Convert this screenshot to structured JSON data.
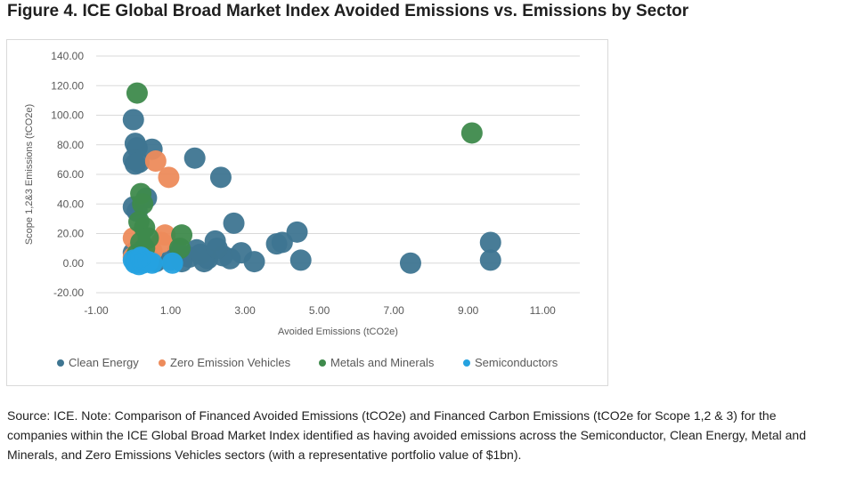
{
  "figure_title": "Figure 4. ICE Global Broad Market Index Avoided Emissions vs. Emissions by Sector",
  "source_note": "Source: ICE. Note: Comparison of Financed Avoided Emissions (tCO2e) and Financed Carbon Emissions (tCO2e for Scope 1,2 & 3) for the companies within the ICE Global Broad Market Index identified as having avoided emissions across the Semiconductor, Clean Energy, Metal and Minerals, and Zero Emissions Vehicles sectors (with a representative portfolio value of $1bn).",
  "chart_data": {
    "type": "scatter",
    "title": "",
    "xlabel": "Avoided Emissions (tCO2e)",
    "ylabel": "Scope 1,2&3 Emissions (tCO2e)",
    "xlim": [
      -1,
      12
    ],
    "ylim": [
      -20,
      140
    ],
    "x_ticks": [
      "-1.00",
      "1.00",
      "3.00",
      "5.00",
      "7.00",
      "9.00",
      "11.00"
    ],
    "y_ticks": [
      "-20.00",
      "0.00",
      "20.00",
      "40.00",
      "60.00",
      "80.00",
      "100.00",
      "120.00",
      "140.00"
    ],
    "grid": true,
    "legend_position": "bottom",
    "series": [
      {
        "name": "Clean Energy",
        "color": "#3e7591",
        "points": [
          [
            0.0,
            97
          ],
          [
            0.05,
            81
          ],
          [
            0.1,
            78
          ],
          [
            0.0,
            70
          ],
          [
            0.05,
            67
          ],
          [
            0.15,
            68
          ],
          [
            0.5,
            77
          ],
          [
            1.65,
            71
          ],
          [
            2.35,
            58
          ],
          [
            0.35,
            44
          ],
          [
            0.0,
            38
          ],
          [
            0.1,
            35
          ],
          [
            0.0,
            7
          ],
          [
            0.2,
            5
          ],
          [
            0.4,
            3
          ],
          [
            0.6,
            1
          ],
          [
            1.0,
            2
          ],
          [
            1.3,
            1
          ],
          [
            1.5,
            4
          ],
          [
            1.8,
            6
          ],
          [
            2.0,
            3
          ],
          [
            2.2,
            15
          ],
          [
            2.4,
            5
          ],
          [
            2.6,
            3
          ],
          [
            2.7,
            27
          ],
          [
            2.9,
            7
          ],
          [
            3.25,
            1
          ],
          [
            3.85,
            13
          ],
          [
            4.0,
            14
          ],
          [
            4.4,
            21
          ],
          [
            4.5,
            2
          ],
          [
            1.9,
            1
          ],
          [
            1.7,
            9
          ],
          [
            2.25,
            10
          ],
          [
            1.2,
            8
          ],
          [
            7.45,
            0
          ],
          [
            9.6,
            14
          ],
          [
            9.6,
            2
          ]
        ]
      },
      {
        "name": "Zero Emission Vehicles",
        "color": "#ed8b5b",
        "points": [
          [
            0.6,
            69
          ],
          [
            0.95,
            58
          ],
          [
            0.0,
            17
          ],
          [
            0.85,
            19
          ],
          [
            0.75,
            14
          ],
          [
            0.3,
            5
          ],
          [
            0.0,
            4
          ],
          [
            0.5,
            8
          ]
        ]
      },
      {
        "name": "Metals and Minerals",
        "color": "#3e8a4c",
        "points": [
          [
            0.1,
            115
          ],
          [
            9.1,
            88
          ],
          [
            0.2,
            47
          ],
          [
            0.25,
            40
          ],
          [
            0.15,
            28
          ],
          [
            0.3,
            24
          ],
          [
            0.2,
            14
          ],
          [
            1.3,
            19
          ],
          [
            0.3,
            10
          ],
          [
            1.25,
            10
          ],
          [
            0.1,
            6
          ],
          [
            0.4,
            17
          ]
        ]
      },
      {
        "name": "Semiconductors",
        "color": "#25a2e0",
        "points": [
          [
            0.0,
            2
          ],
          [
            0.05,
            0
          ],
          [
            0.1,
            1
          ],
          [
            0.15,
            -1
          ],
          [
            0.2,
            3
          ],
          [
            0.25,
            0
          ],
          [
            0.3,
            2
          ],
          [
            0.4,
            1
          ],
          [
            0.5,
            0
          ],
          [
            1.05,
            0
          ],
          [
            0.2,
            4
          ],
          [
            0.1,
            2
          ]
        ]
      }
    ]
  }
}
